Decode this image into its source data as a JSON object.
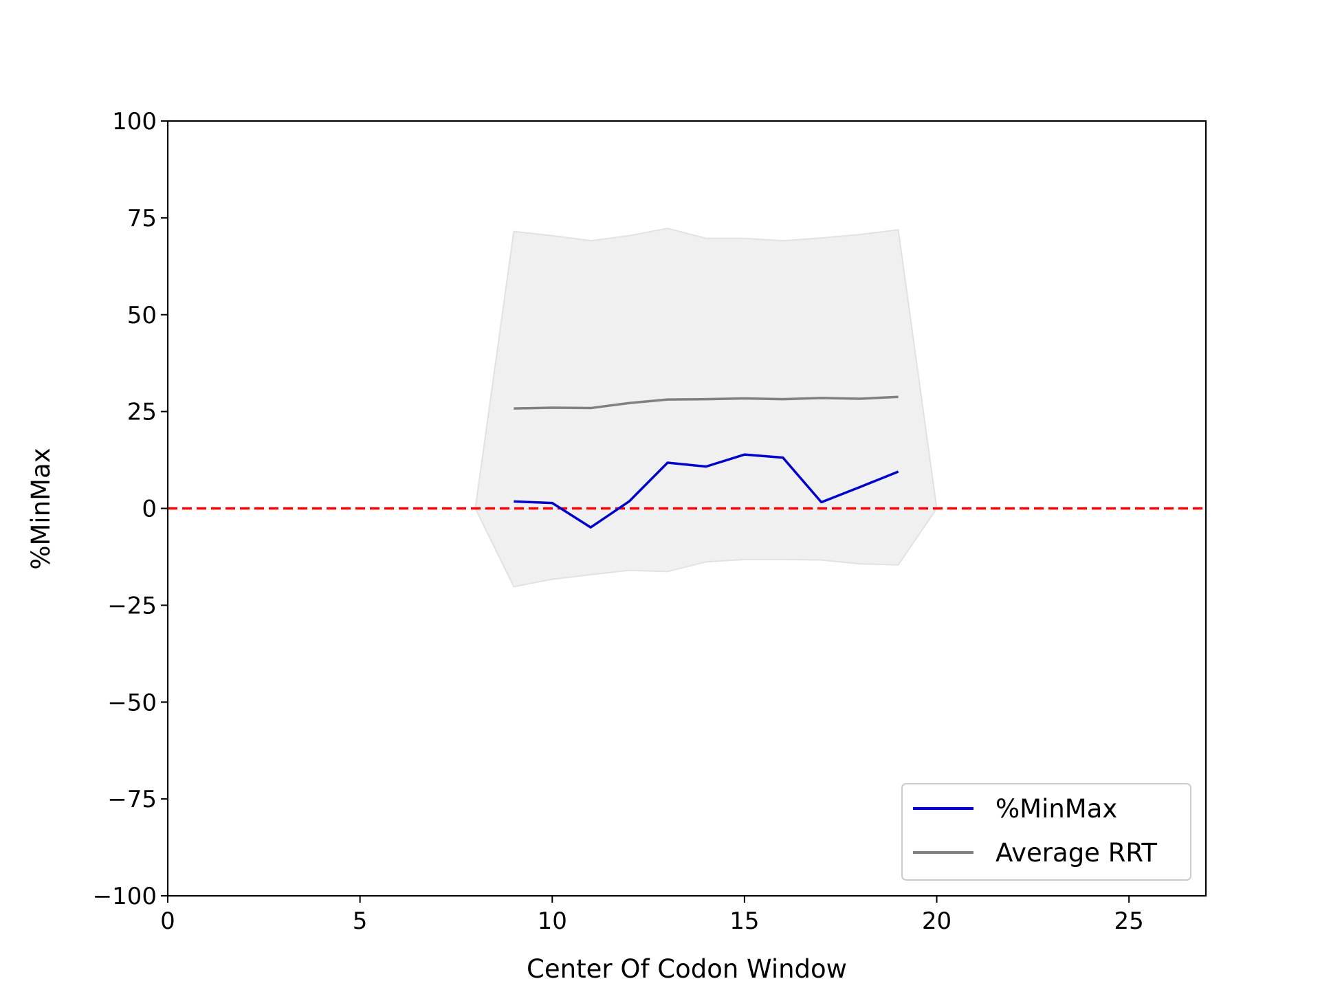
{
  "chart_data": {
    "type": "line",
    "title": "",
    "xlabel": "Center Of Codon Window",
    "ylabel": "%MinMax",
    "xlim": [
      0,
      27
    ],
    "ylim": [
      -100,
      100
    ],
    "xticks": [
      0,
      5,
      10,
      15,
      20,
      25
    ],
    "yticks": [
      -100,
      -75,
      -50,
      -25,
      0,
      25,
      50,
      75,
      100
    ],
    "xtick_labels": [
      "0",
      "5",
      "10",
      "15",
      "20",
      "25"
    ],
    "ytick_labels": [
      "−100",
      "−75",
      "−50",
      "−25",
      "0",
      "25",
      "50",
      "75",
      "100"
    ],
    "grid": false,
    "legend_position": "lower-right",
    "series": [
      {
        "name": "%MinMax",
        "color": "#0000cd",
        "x": [
          9,
          10,
          11,
          12,
          13,
          14,
          15,
          16,
          17,
          18,
          19
        ],
        "y": [
          1.8,
          1.4,
          -4.9,
          1.8,
          11.8,
          10.8,
          13.9,
          13.1,
          1.6,
          5.5,
          9.5
        ]
      },
      {
        "name": "Average RRT",
        "color": "#808080",
        "x": [
          9,
          10,
          11,
          12,
          13,
          14,
          15,
          16,
          17,
          18,
          19
        ],
        "y": [
          25.8,
          26.0,
          25.9,
          27.2,
          28.1,
          28.2,
          28.4,
          28.2,
          28.5,
          28.3,
          28.8
        ]
      }
    ],
    "band": {
      "color": "#f0f0f0",
      "edge_color": "#e2e2e2",
      "x": [
        8,
        9,
        10,
        11,
        12,
        13,
        14,
        15,
        16,
        17,
        18,
        19,
        20
      ],
      "upper": [
        0,
        71.5,
        70.4,
        69.1,
        70.4,
        72.3,
        69.7,
        69.7,
        69.1,
        69.8,
        70.7,
        71.9,
        0
      ],
      "lower": [
        0,
        -20.2,
        -18.3,
        -17.1,
        -16.0,
        -16.3,
        -13.8,
        -13.2,
        -13.2,
        -13.3,
        -14.3,
        -14.6,
        0
      ]
    },
    "reference_line": {
      "y": 0,
      "color": "#ff0000",
      "style": "dashed"
    }
  }
}
